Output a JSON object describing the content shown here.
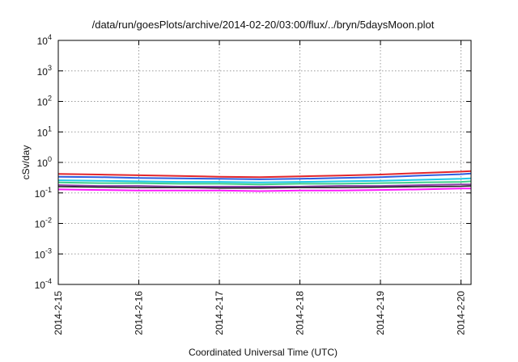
{
  "chart_data": {
    "type": "line",
    "title": "/data/run/goesPlots/archive/2014-02-20/03:00/flux/../bryn/5daysMoon.plot",
    "xlabel": "Coordinated Universal Time (UTC)",
    "ylabel": "cSv/day",
    "yscale": "log",
    "ylim": [
      0.0001,
      10000
    ],
    "xlim": [
      "2014-02-15T00:00",
      "2014-02-20T03:00"
    ],
    "grid": true,
    "legend": "none",
    "y_ticks": [
      {
        "value": 0.0001,
        "base": "10",
        "exp": "-4"
      },
      {
        "value": 0.001,
        "base": "10",
        "exp": "-3"
      },
      {
        "value": 0.01,
        "base": "10",
        "exp": "-2"
      },
      {
        "value": 0.1,
        "base": "10",
        "exp": "-1"
      },
      {
        "value": 1,
        "base": "10",
        "exp": "0"
      },
      {
        "value": 10,
        "base": "10",
        "exp": "1"
      },
      {
        "value": 100,
        "base": "10",
        "exp": "2"
      },
      {
        "value": 1000,
        "base": "10",
        "exp": "3"
      },
      {
        "value": 10000,
        "base": "10",
        "exp": "4"
      }
    ],
    "x_ticks": [
      {
        "value": "2014-02-15T00:00",
        "label": "2014-2-15"
      },
      {
        "value": "2014-02-16T00:00",
        "label": "2014-2-16"
      },
      {
        "value": "2014-02-17T00:00",
        "label": "2014-2-17"
      },
      {
        "value": "2014-02-18T00:00",
        "label": "2014-2-18"
      },
      {
        "value": "2014-02-19T00:00",
        "label": "2014-2-19"
      },
      {
        "value": "2014-02-20T00:00",
        "label": "2014-2-20"
      }
    ],
    "series": [
      {
        "color": "#e3262b",
        "width": 2,
        "x": [
          "2014-02-15T00:00",
          "2014-02-15T12:00",
          "2014-02-16T00:00",
          "2014-02-16T12:00",
          "2014-02-17T00:00",
          "2014-02-17T12:00",
          "2014-02-18T00:00",
          "2014-02-18T12:00",
          "2014-02-19T00:00",
          "2014-02-19T12:00",
          "2014-02-20T00:00",
          "2014-02-20T03:00"
        ],
        "y": [
          0.42,
          0.4,
          0.38,
          0.36,
          0.34,
          0.33,
          0.35,
          0.37,
          0.4,
          0.45,
          0.5,
          0.52
        ]
      },
      {
        "color": "#2e5fe0",
        "width": 2,
        "x": [
          "2014-02-15T00:00",
          "2014-02-15T12:00",
          "2014-02-16T00:00",
          "2014-02-16T12:00",
          "2014-02-17T00:00",
          "2014-02-17T12:00",
          "2014-02-18T00:00",
          "2014-02-18T12:00",
          "2014-02-19T00:00",
          "2014-02-19T12:00",
          "2014-02-20T00:00",
          "2014-02-20T03:00"
        ],
        "y": [
          0.34,
          0.33,
          0.31,
          0.3,
          0.29,
          0.28,
          0.29,
          0.31,
          0.33,
          0.37,
          0.41,
          0.43
        ]
      },
      {
        "color": "#1fc8e6",
        "width": 2,
        "x": [
          "2014-02-15T00:00",
          "2014-02-15T12:00",
          "2014-02-16T00:00",
          "2014-02-16T12:00",
          "2014-02-17T00:00",
          "2014-02-17T12:00",
          "2014-02-18T00:00",
          "2014-02-18T12:00",
          "2014-02-19T00:00",
          "2014-02-19T12:00",
          "2014-02-20T00:00",
          "2014-02-20T03:00"
        ],
        "y": [
          0.26,
          0.25,
          0.24,
          0.23,
          0.23,
          0.22,
          0.23,
          0.24,
          0.25,
          0.27,
          0.29,
          0.3
        ]
      },
      {
        "color": "#3fd08a",
        "width": 2,
        "x": [
          "2014-02-15T00:00",
          "2014-02-15T12:00",
          "2014-02-16T00:00",
          "2014-02-16T12:00",
          "2014-02-17T00:00",
          "2014-02-17T12:00",
          "2014-02-18T00:00",
          "2014-02-18T12:00",
          "2014-02-19T00:00",
          "2014-02-19T12:00",
          "2014-02-20T00:00",
          "2014-02-20T03:00"
        ],
        "y": [
          0.22,
          0.21,
          0.21,
          0.2,
          0.2,
          0.19,
          0.2,
          0.2,
          0.21,
          0.22,
          0.23,
          0.24
        ]
      },
      {
        "color": "#8a3fa8",
        "width": 2,
        "x": [
          "2014-02-15T00:00",
          "2014-02-15T12:00",
          "2014-02-16T00:00",
          "2014-02-16T12:00",
          "2014-02-17T00:00",
          "2014-02-17T12:00",
          "2014-02-18T00:00",
          "2014-02-18T12:00",
          "2014-02-19T00:00",
          "2014-02-19T12:00",
          "2014-02-20T00:00",
          "2014-02-20T03:00"
        ],
        "y": [
          0.18,
          0.17,
          0.17,
          0.16,
          0.16,
          0.16,
          0.16,
          0.17,
          0.17,
          0.18,
          0.19,
          0.19
        ]
      },
      {
        "color": "#1a1a1a",
        "width": 1.5,
        "x": [
          "2014-02-15T00:00",
          "2014-02-15T12:00",
          "2014-02-16T00:00",
          "2014-02-16T12:00",
          "2014-02-17T00:00",
          "2014-02-17T12:00",
          "2014-02-18T00:00",
          "2014-02-18T12:00",
          "2014-02-19T00:00",
          "2014-02-19T12:00",
          "2014-02-20T00:00",
          "2014-02-20T03:00"
        ],
        "y": [
          0.16,
          0.155,
          0.15,
          0.15,
          0.145,
          0.145,
          0.15,
          0.15,
          0.155,
          0.16,
          0.165,
          0.17
        ]
      },
      {
        "color": "#ff19ff",
        "width": 2,
        "x": [
          "2014-02-15T00:00",
          "2014-02-15T12:00",
          "2014-02-16T00:00",
          "2014-02-16T12:00",
          "2014-02-17T00:00",
          "2014-02-17T12:00",
          "2014-02-18T00:00",
          "2014-02-18T12:00",
          "2014-02-19T00:00",
          "2014-02-19T12:00",
          "2014-02-20T00:00",
          "2014-02-20T03:00"
        ],
        "y": [
          0.13,
          0.125,
          0.12,
          0.12,
          0.12,
          0.115,
          0.12,
          0.12,
          0.125,
          0.13,
          0.14,
          0.14
        ]
      }
    ]
  }
}
